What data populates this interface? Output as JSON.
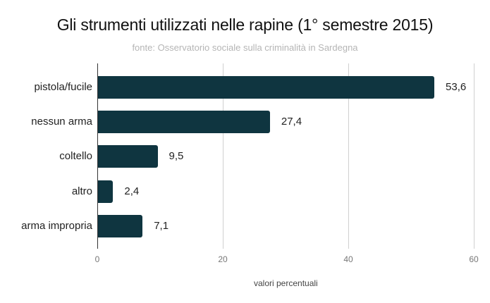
{
  "header": {
    "title": "Gli  strumenti utilizzati nelle rapine (1° semestre 2015)",
    "subtitle": "fonte: Osservatorio sociale sulla criminalità in Sardegna"
  },
  "colors": {
    "bar": "#0f3540",
    "grid": "#d0d0d0",
    "axis": "#333333"
  },
  "chart_data": {
    "type": "bar",
    "orientation": "horizontal",
    "title": "Gli  strumenti utilizzati nelle rapine (1° semestre 2015)",
    "subtitle": "fonte: Osservatorio sociale sulla criminalità in Sardegna",
    "categories": [
      "pistola/fucile",
      "nessun arma",
      "coltello",
      "altro",
      "arma impropria"
    ],
    "values": [
      53.6,
      27.4,
      9.5,
      2.4,
      7.1
    ],
    "value_labels": [
      "53,6",
      "27,4",
      "9,5",
      "2,4",
      "7,1"
    ],
    "xlabel": "valori percentuali",
    "ylabel": "",
    "xlim": [
      0,
      60
    ],
    "xticks": [
      "0",
      "20",
      "40",
      "60"
    ],
    "grid": true,
    "legend": null
  }
}
